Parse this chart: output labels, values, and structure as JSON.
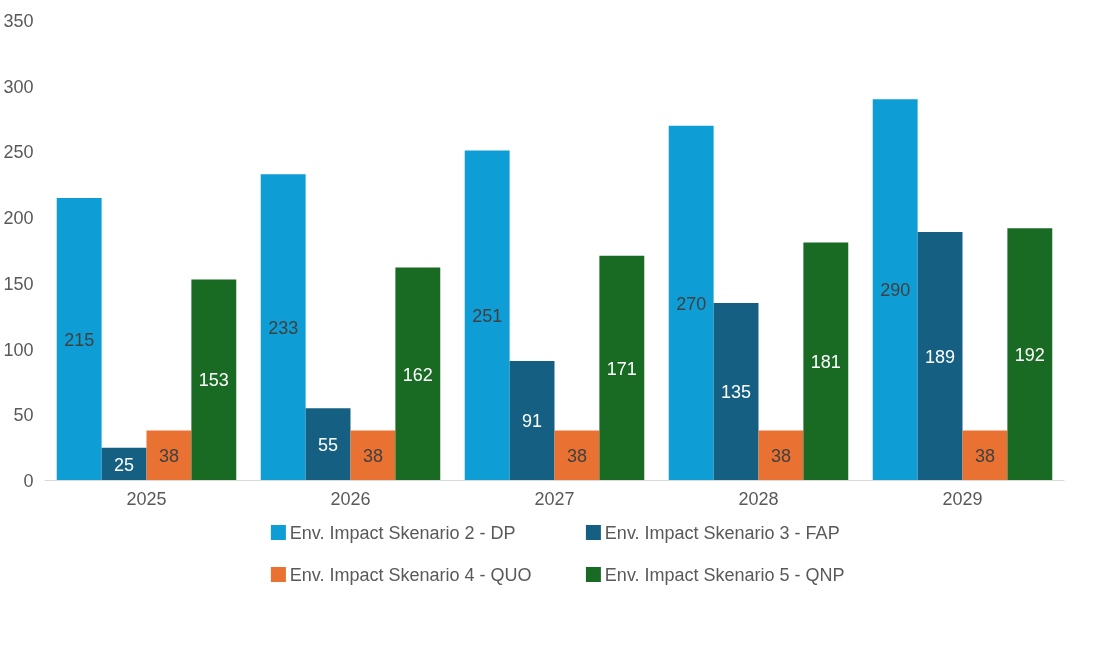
{
  "chart_data": {
    "type": "bar",
    "categories": [
      "2025",
      "2026",
      "2027",
      "2028",
      "2029"
    ],
    "series": [
      {
        "name": "Env. Impact Skenario 2 - DP",
        "color": "#0e9ed5",
        "values": [
          215,
          233,
          251,
          270,
          290
        ]
      },
      {
        "name": "Env. Impact Skenario 3 - FAP",
        "color": "#156082",
        "values": [
          25,
          55,
          91,
          135,
          189
        ]
      },
      {
        "name": "Env. Impact Skenario 4 - QUO",
        "color": "#e97132",
        "values": [
          38,
          38,
          38,
          38,
          38
        ]
      },
      {
        "name": "Env. Impact Skenario 5 - QNP",
        "color": "#196b24",
        "values": [
          153,
          162,
          171,
          181,
          192
        ]
      }
    ],
    "ylim": [
      0,
      350
    ],
    "yticks": [
      0,
      50,
      100,
      150,
      200,
      250,
      300,
      350
    ],
    "grid": false,
    "legend": "bottom",
    "data_labels": true
  }
}
